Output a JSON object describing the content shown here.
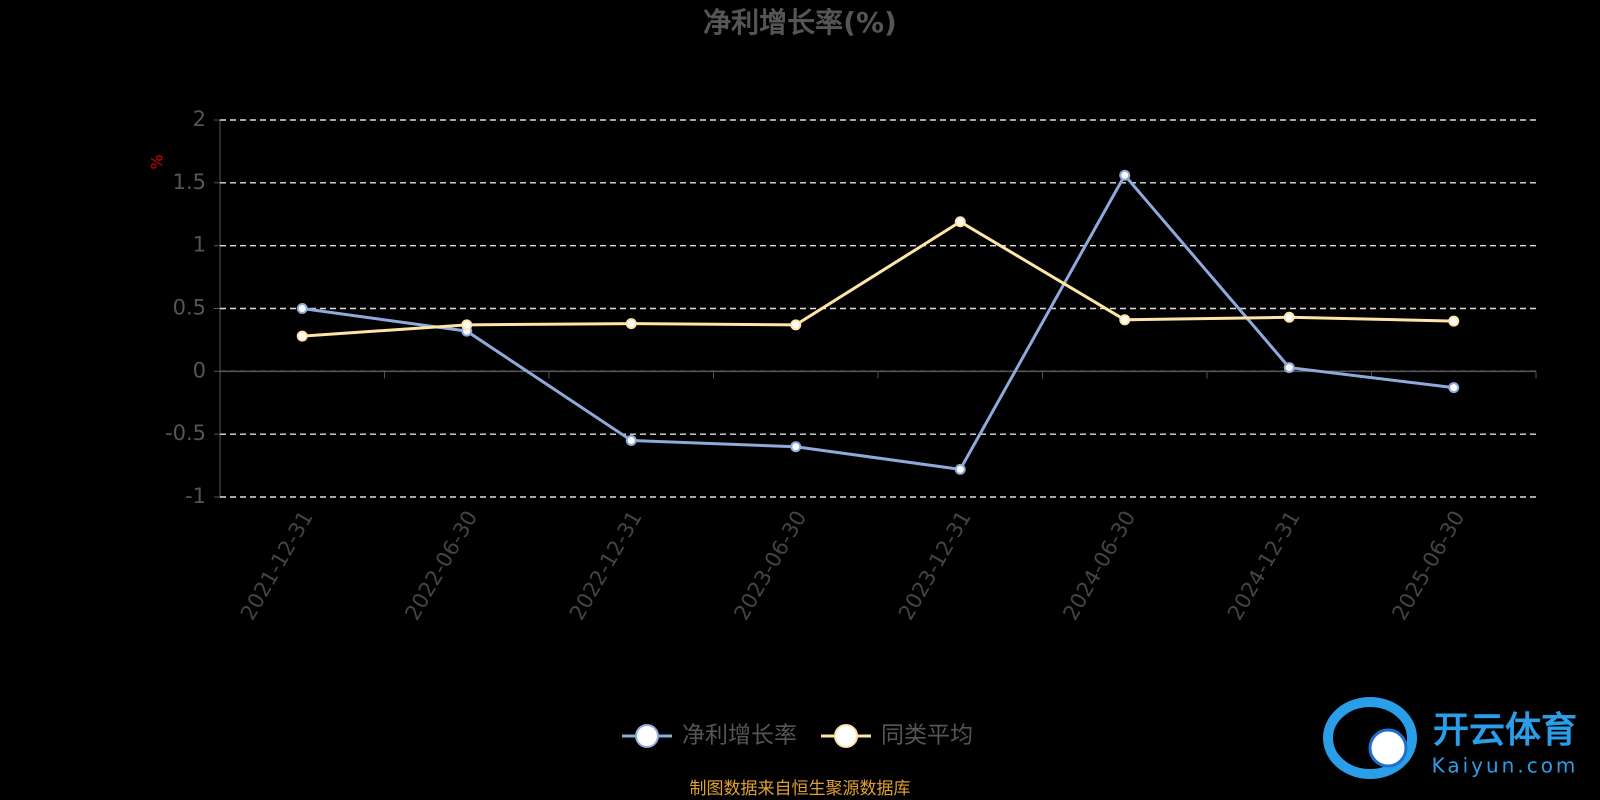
{
  "chart_data": {
    "type": "line",
    "title": "净利增长率(%)",
    "y_label": "%",
    "categories": [
      "2021-12-31",
      "2022-06-30",
      "2022-12-31",
      "2023-06-30",
      "2023-12-31",
      "2024-06-30",
      "2024-12-31",
      "2025-06-30"
    ],
    "series": [
      {
        "name": "净利增长率",
        "color": "#8eaadb",
        "values": [
          0.5,
          0.32,
          -0.55,
          -0.6,
          -0.78,
          1.56,
          0.03,
          -0.13
        ]
      },
      {
        "name": "同类平均",
        "color": "#ffe4a8",
        "values": [
          0.28,
          0.37,
          0.38,
          0.37,
          1.19,
          0.41,
          0.43,
          0.4
        ]
      }
    ],
    "ylim": [
      -1,
      2
    ],
    "yticks": [
      -1,
      -0.5,
      0,
      0.5,
      1,
      1.5,
      2
    ],
    "grid": true,
    "legend": "bottom"
  },
  "source": "制图数据来自恒生聚源数据库",
  "watermark": {
    "brand": "开云体育",
    "url": "Kaiyun.com"
  }
}
